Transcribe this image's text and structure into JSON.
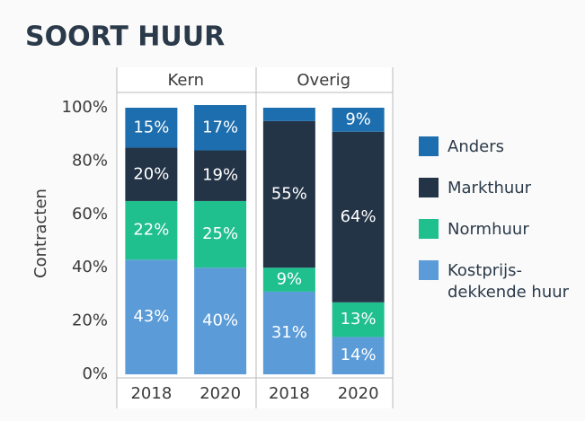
{
  "chart_data": {
    "type": "stacked-bar",
    "title": "SOORT HUUR",
    "y_label": "Contracten",
    "groups": [
      "Kern",
      "Overig"
    ],
    "categories": [
      "2018",
      "2020",
      "2018",
      "2020"
    ],
    "series": [
      {
        "name": "Kostprijs-dekkende huur",
        "color": "#5b9bd8",
        "values": [
          43,
          40,
          31,
          14
        ],
        "value_labels": [
          "43%",
          "40%",
          "31%",
          "14%"
        ]
      },
      {
        "name": "Normhuur",
        "color": "#20bf8e",
        "values": [
          22,
          25,
          9,
          13
        ],
        "value_labels": [
          "22%",
          "25%",
          "9%",
          "13%"
        ]
      },
      {
        "name": "Markthuur",
        "color": "#243447",
        "values": [
          20,
          19,
          55,
          64
        ],
        "value_labels": [
          "20%",
          "19%",
          "55%",
          "64%"
        ]
      },
      {
        "name": "Anders",
        "color": "#1c6eae",
        "values": [
          15,
          17,
          5,
          9
        ],
        "value_labels": [
          "15%",
          "17%",
          null,
          "9%"
        ]
      }
    ],
    "ylim": [
      0,
      100
    ],
    "yticks": [
      {
        "value": 0,
        "label": "0%"
      },
      {
        "value": 20,
        "label": "20%"
      },
      {
        "value": 40,
        "label": "40%"
      },
      {
        "value": 60,
        "label": "60%"
      },
      {
        "value": 80,
        "label": "80%"
      },
      {
        "value": 100,
        "label": "100%"
      }
    ],
    "legend": "right"
  }
}
